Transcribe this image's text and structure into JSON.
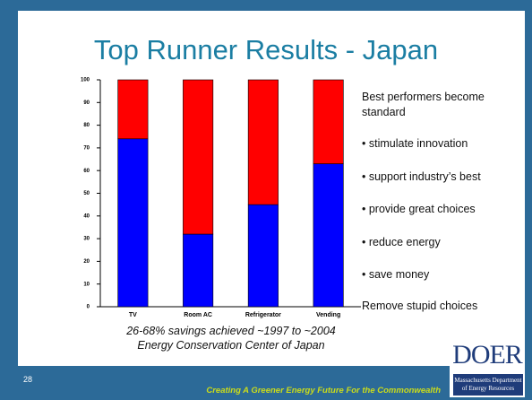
{
  "slide": {
    "title": "Top Runner Results - Japan",
    "notes": {
      "lead": "Best performers become standard",
      "bullets": [
        "• stimulate innovation",
        "• support industry’s best",
        "• provide great choices",
        "• reduce energy",
        "• save money"
      ],
      "closing": "Remove stupid choices"
    },
    "caption": [
      "26-68% savings achieved ~1997 to ~2004",
      "Energy Conservation Center of Japan"
    ],
    "page_number": "28",
    "footer": "Creating A Greener Energy Future For the Commonwealth",
    "logo": {
      "name": "DOER",
      "org": [
        "Massachusetts Department",
        "of Energy Resources"
      ]
    }
  },
  "chart_data": {
    "type": "bar",
    "stacked": true,
    "categories": [
      "TV",
      "Room AC",
      "Refrigerator",
      "Vending"
    ],
    "series": [
      {
        "color": "#0000ff",
        "values": [
          74,
          32,
          45,
          63
        ]
      },
      {
        "color": "#ff0000",
        "values": [
          26,
          68,
          55,
          37
        ]
      }
    ],
    "ylim": [
      0,
      100
    ],
    "yticks": [
      0,
      10,
      20,
      30,
      40,
      50,
      60,
      70,
      80,
      90,
      100
    ],
    "grid": false
  }
}
